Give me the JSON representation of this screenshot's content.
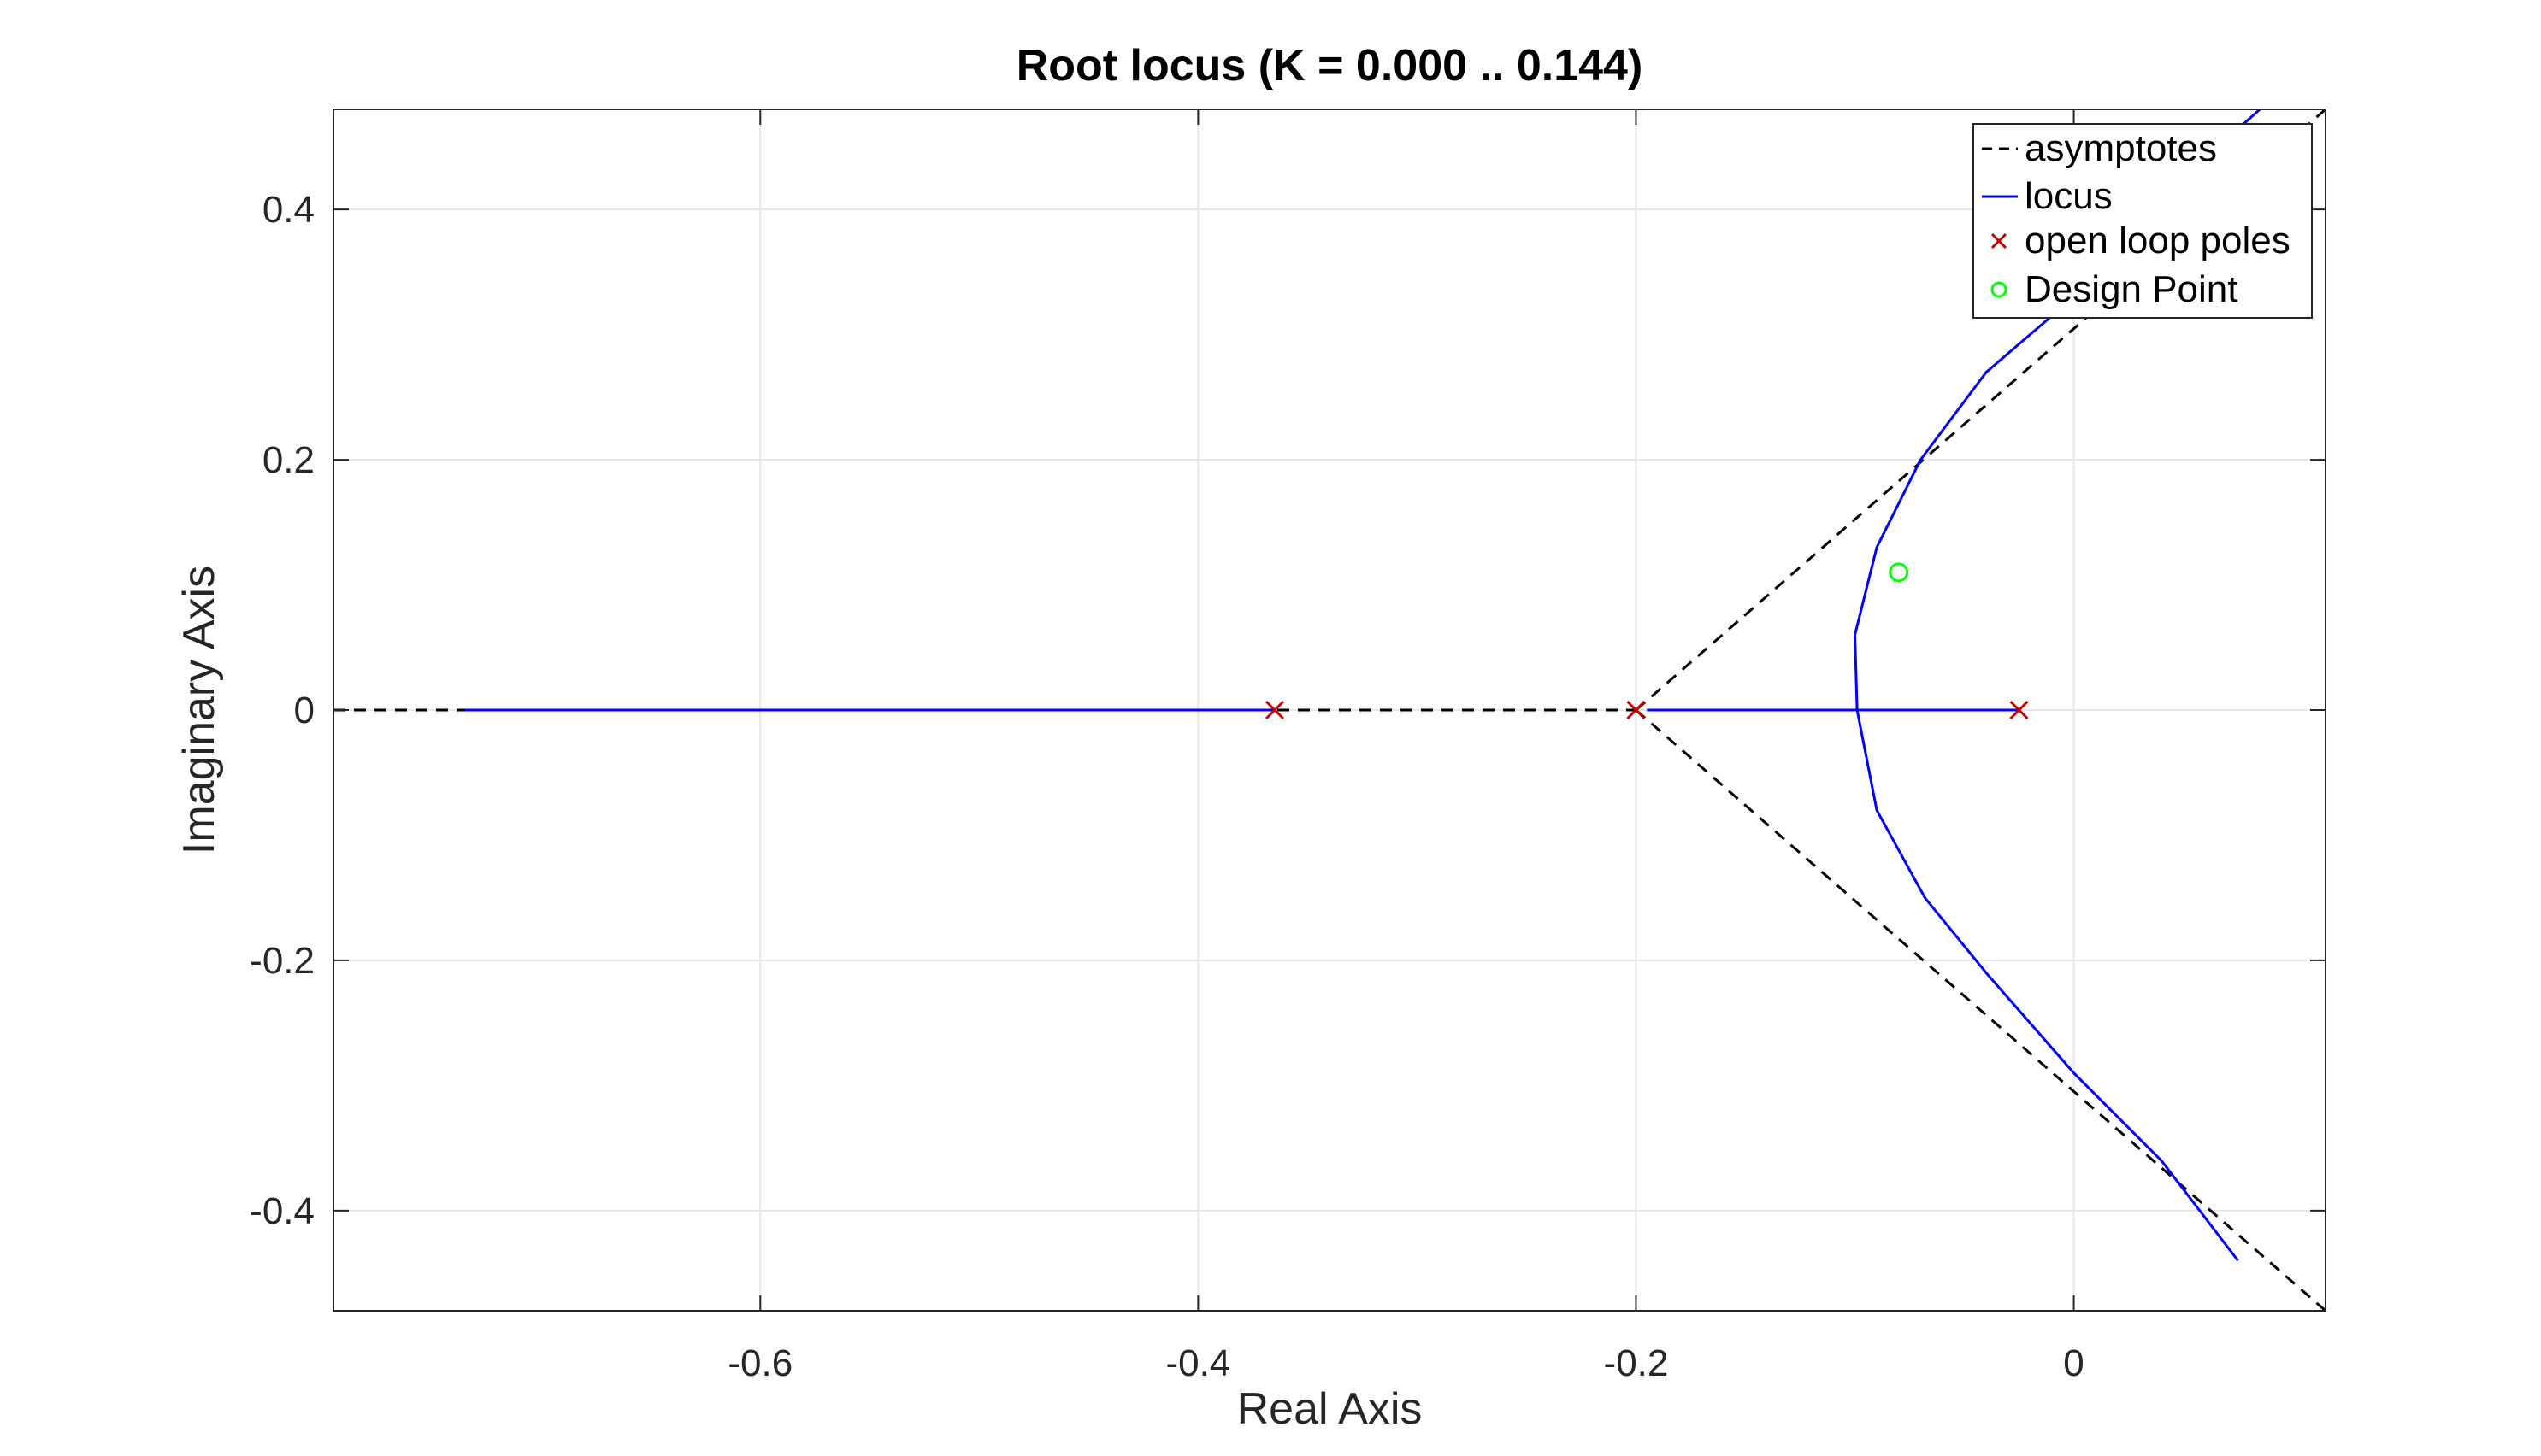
{
  "chart_data": {
    "type": "line",
    "title": "Root locus (K = 0.000 .. 0.144)",
    "xlabel": "Real Axis",
    "ylabel": "Imaginary Axis",
    "xlim": [
      -0.795,
      0.115
    ],
    "ylim": [
      -0.48,
      0.48
    ],
    "grid": true,
    "legend_position": "top-right",
    "x_ticks": [
      {
        "value": -0.6,
        "label": "-0.6"
      },
      {
        "value": -0.4,
        "label": "-0.4"
      },
      {
        "value": -0.2,
        "label": "-0.2"
      },
      {
        "value": 0,
        "label": "0"
      }
    ],
    "y_ticks": [
      {
        "value": 0.4,
        "label": "0.4"
      },
      {
        "value": 0.2,
        "label": "0.2"
      },
      {
        "value": 0,
        "label": "0"
      },
      {
        "value": -0.2,
        "label": "-0.2"
      },
      {
        "value": -0.4,
        "label": "-0.4"
      }
    ],
    "series": [
      {
        "name": "asymptotes",
        "style": "dashed",
        "color": "#000000",
        "lines": [
          {
            "x": [
              -0.795,
              -0.2
            ],
            "y": [
              0,
              0
            ]
          },
          {
            "x": [
              -0.2,
              0.115
            ],
            "y": [
              0,
              0.48
            ]
          },
          {
            "x": [
              -0.2,
              0.115
            ],
            "y": [
              0,
              -0.48
            ]
          }
        ]
      },
      {
        "name": "locus",
        "style": "solid",
        "color": "#0000ff",
        "lines": [
          {
            "x": [
              -0.735,
              -0.365
            ],
            "y": [
              0,
              0
            ]
          },
          {
            "x": [
              -0.195,
              -0.025
            ],
            "y": [
              0,
              0
            ]
          },
          {
            "x": [
              0.085,
              0.04,
              0.0,
              -0.04,
              -0.07,
              -0.09,
              -0.1,
              -0.099,
              -0.09,
              -0.068,
              -0.04,
              0.0,
              0.04,
              0.075
            ],
            "y": [
              0.48,
              0.41,
              0.33,
              0.27,
              0.2,
              0.13,
              0.06,
              0.0,
              -0.08,
              -0.15,
              -0.21,
              -0.29,
              -0.36,
              -0.44
            ]
          }
        ]
      },
      {
        "name": "open loop poles",
        "marker": "x",
        "color": "#c00000",
        "x": [
          -0.365,
          -0.2,
          -0.025
        ],
        "y": [
          0,
          0,
          0
        ]
      },
      {
        "name": "Design Point",
        "marker": "o",
        "color": "#00ff00",
        "x": [
          -0.08
        ],
        "y": [
          0.11
        ]
      }
    ]
  }
}
